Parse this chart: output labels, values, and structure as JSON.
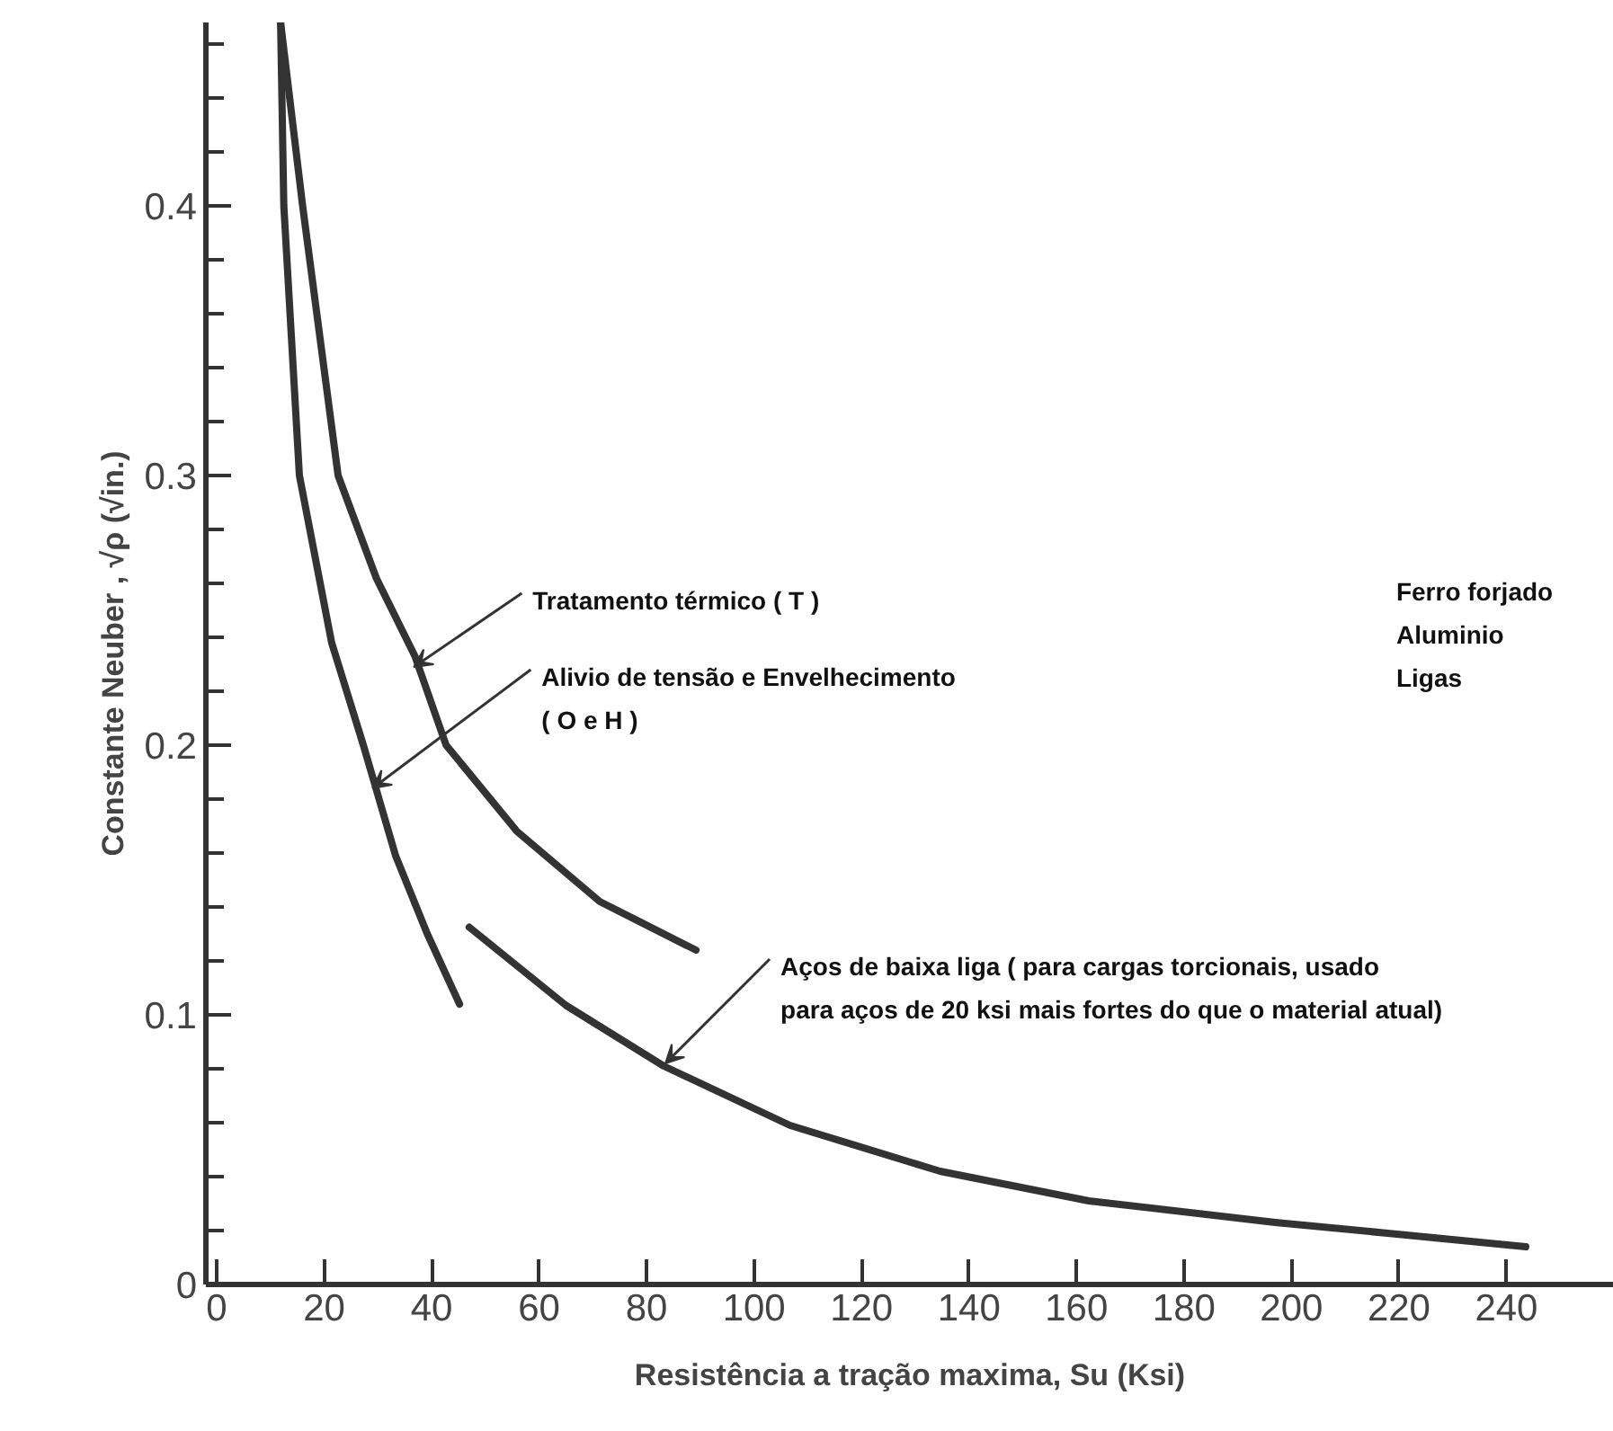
{
  "chart_data": {
    "type": "line",
    "xlabel": "Resistência a tração maxima, Su (Ksi)",
    "ylabel": "Constante Neuber , √ρ (√in.)",
    "xlim": [
      -2,
      260
    ],
    "ylim": [
      0,
      0.468
    ],
    "xticks": [
      0,
      20,
      40,
      60,
      80,
      100,
      120,
      140,
      160,
      180,
      200,
      220,
      240
    ],
    "yticks": [
      0,
      {
        "value": 0.02,
        "label": null
      },
      {
        "value": 0.04,
        "label": null
      },
      {
        "value": 0.06,
        "label": null
      },
      {
        "value": 0.08,
        "label": null
      },
      0.1,
      {
        "value": 0.12,
        "label": null
      },
      {
        "value": 0.14,
        "label": null
      },
      {
        "value": 0.16,
        "label": null
      },
      {
        "value": 0.18,
        "label": null
      },
      0.2,
      {
        "value": 0.22,
        "label": null
      },
      {
        "value": 0.24,
        "label": null
      },
      {
        "value": 0.26,
        "label": null
      },
      {
        "value": 0.28,
        "label": null
      },
      0.3,
      {
        "value": 0.32,
        "label": null
      },
      {
        "value": 0.34,
        "label": null
      },
      {
        "value": 0.36,
        "label": null
      },
      {
        "value": 0.38,
        "label": null
      },
      0.4,
      {
        "value": 0.42,
        "label": null
      },
      {
        "value": 0.44,
        "label": null
      },
      {
        "value": 0.46,
        "label": null
      }
    ],
    "grid": false,
    "marker": "none",
    "line_style": "solid",
    "series": [
      {
        "color": "#333333",
        "x": [
          11.9,
          16,
          22.6,
          29.7,
          36.9,
          42.7,
          55.9,
          71.3,
          89.2
        ],
        "values": [
          0.468,
          0.4,
          0.3,
          0.262,
          0.233,
          0.2,
          0.168,
          0.142,
          0.124
        ]
      },
      {
        "color": "#333333",
        "x": [
          11.9,
          12.5,
          15.4,
          21.4,
          27.3,
          33.3,
          39.2,
          45.2
        ],
        "values": [
          0.468,
          0.4,
          0.3,
          0.238,
          0.2,
          0.159,
          0.13,
          0.104
        ]
      },
      {
        "color": "#333333",
        "x": [
          47,
          65,
          83.2,
          106.7,
          134.6,
          162.3,
          197,
          217.9,
          243.6
        ],
        "values": [
          0.1325,
          0.1035,
          0.081,
          0.059,
          0.042,
          0.031,
          0.023,
          0.019,
          0.014
        ]
      }
    ],
    "annotations": [
      {
        "text": "Tratamento térmico ( T )",
        "x": 36.7,
        "y": 0.229
      },
      {
        "text": "Alivio de tensão e Envelhecimento\n( O e H )",
        "x": 29,
        "y": 0.184
      },
      {
        "text": "Aços de baixa liga ( para cargas torcionais, usado\npara aços de 20 ksi mais fortes do que o material atual)",
        "x": 83.5,
        "y": 0.082
      },
      "Ferro forjado\nAluminio\nLigas"
    ]
  }
}
